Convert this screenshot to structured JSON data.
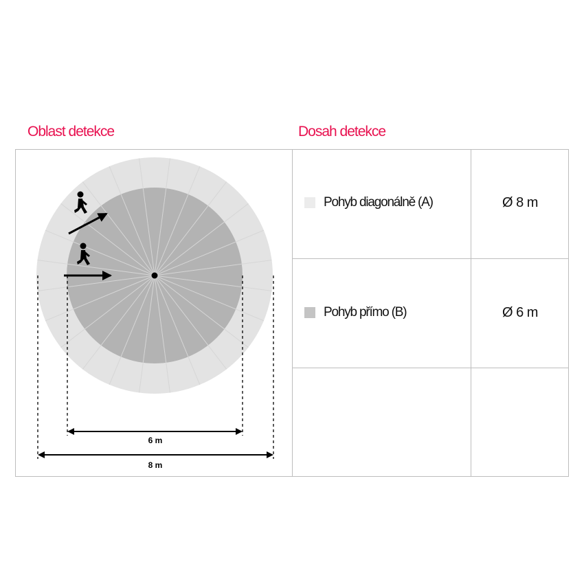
{
  "headings": {
    "area": "Oblast detekce",
    "range": "Dosah detekce"
  },
  "legend": [
    {
      "label": "Pohyb diagonálně (A)",
      "value": "Ø 8 m",
      "color": "#ececec"
    },
    {
      "label": "Pohyb přímo  (B)",
      "value": "Ø 6 m",
      "color": "#c4c4c4"
    }
  ],
  "diagram": {
    "outer_label": "8 m",
    "inner_label": "6 m",
    "outer_color": "#e3e3e3",
    "inner_color": "#b3b3b3",
    "accent": "#e8104f"
  }
}
